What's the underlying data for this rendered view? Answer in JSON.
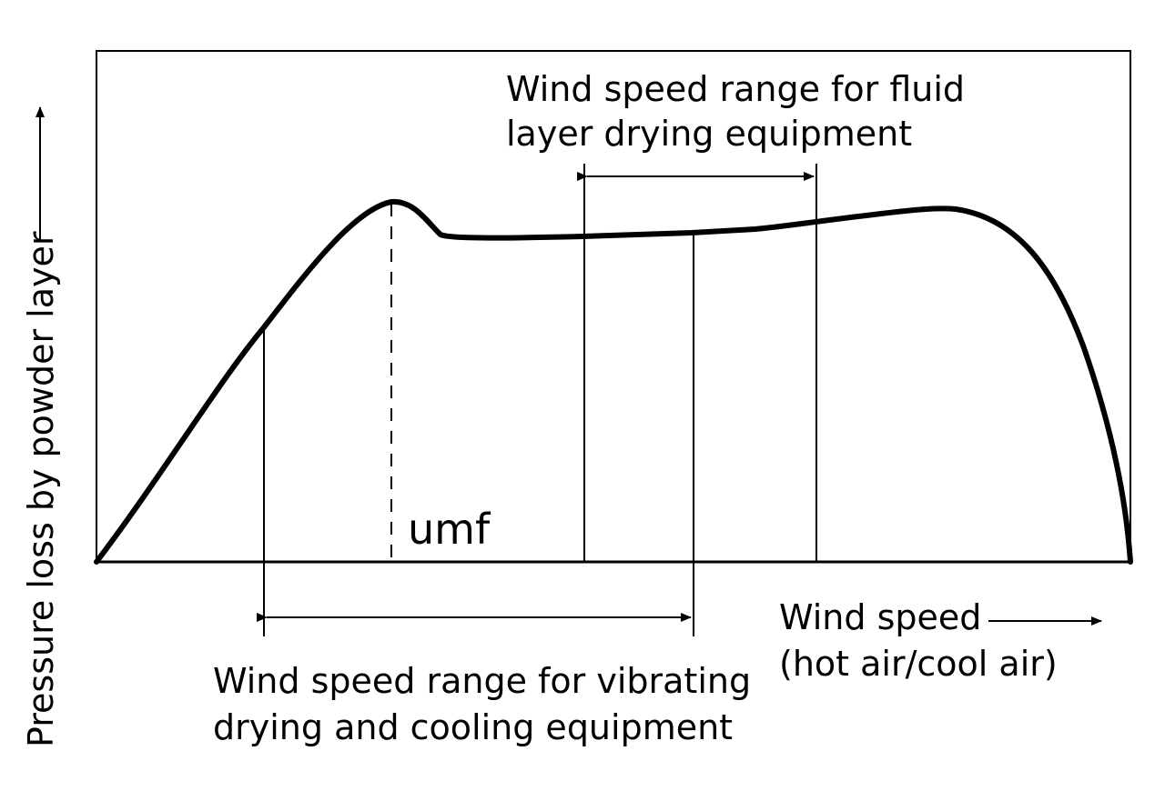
{
  "diagram": {
    "y_axis_label": "Pressure loss by powder layer",
    "x_axis_label_line1": "Wind speed",
    "x_axis_label_line2": "(hot air/cool air)",
    "umf_label": "umf",
    "fluid_range_label_line1": "Wind speed range for fluid",
    "fluid_range_label_line2": "layer drying equipment",
    "vibrating_range_label_line1": "Wind speed range for vibrating",
    "vibrating_range_label_line2": "drying and cooling equipment"
  }
}
